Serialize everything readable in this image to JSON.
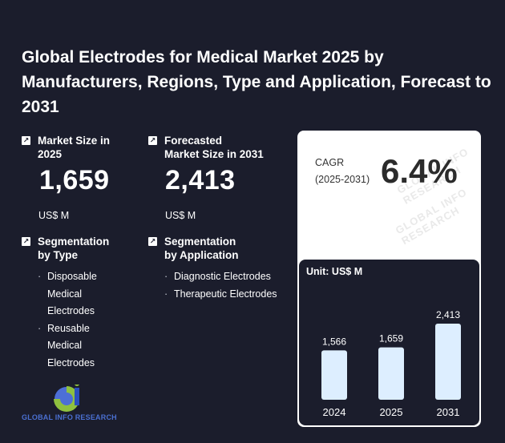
{
  "title": "Global Electrodes for Medical Market 2025 by Manufacturers, Regions, Type and Application, Forecast to 2031",
  "market_size": {
    "label": "Market Size in\n2025",
    "value": "1,659",
    "unit": "US$ M"
  },
  "forecast_size": {
    "label": "Forecasted\nMarket Size in 2031",
    "value": "2,413",
    "unit": "US$ M"
  },
  "segmentation_type": {
    "label": "Segmentation\nby Type",
    "items": [
      "Disposable\nMedical\nElectrodes",
      "Reusable\nMedical\nElectrodes"
    ]
  },
  "segmentation_application": {
    "label": "Segmentation\nby Application",
    "items": [
      "Diagnostic Electrodes",
      "Therapeutic Electrodes"
    ]
  },
  "cagr": {
    "label": "CAGR\n(2025-2031)",
    "value": "6.4%"
  },
  "watermark_text": "GLOBAL INFO RESEARCH",
  "logo_text": "GLOBAL INFO RESEARCH",
  "colors": {
    "background": "#1b1d2c",
    "bar_fill": "#ddeeff",
    "card": "#ffffff"
  },
  "chart_data": {
    "type": "bar",
    "unit_label": "Unit: US$ M",
    "categories": [
      "2024",
      "2025",
      "2031"
    ],
    "values": [
      1566,
      1659,
      2413
    ],
    "value_labels": [
      "1,566",
      "1,659",
      "2,413"
    ],
    "ylim": [
      0,
      2413
    ],
    "grid": false
  }
}
